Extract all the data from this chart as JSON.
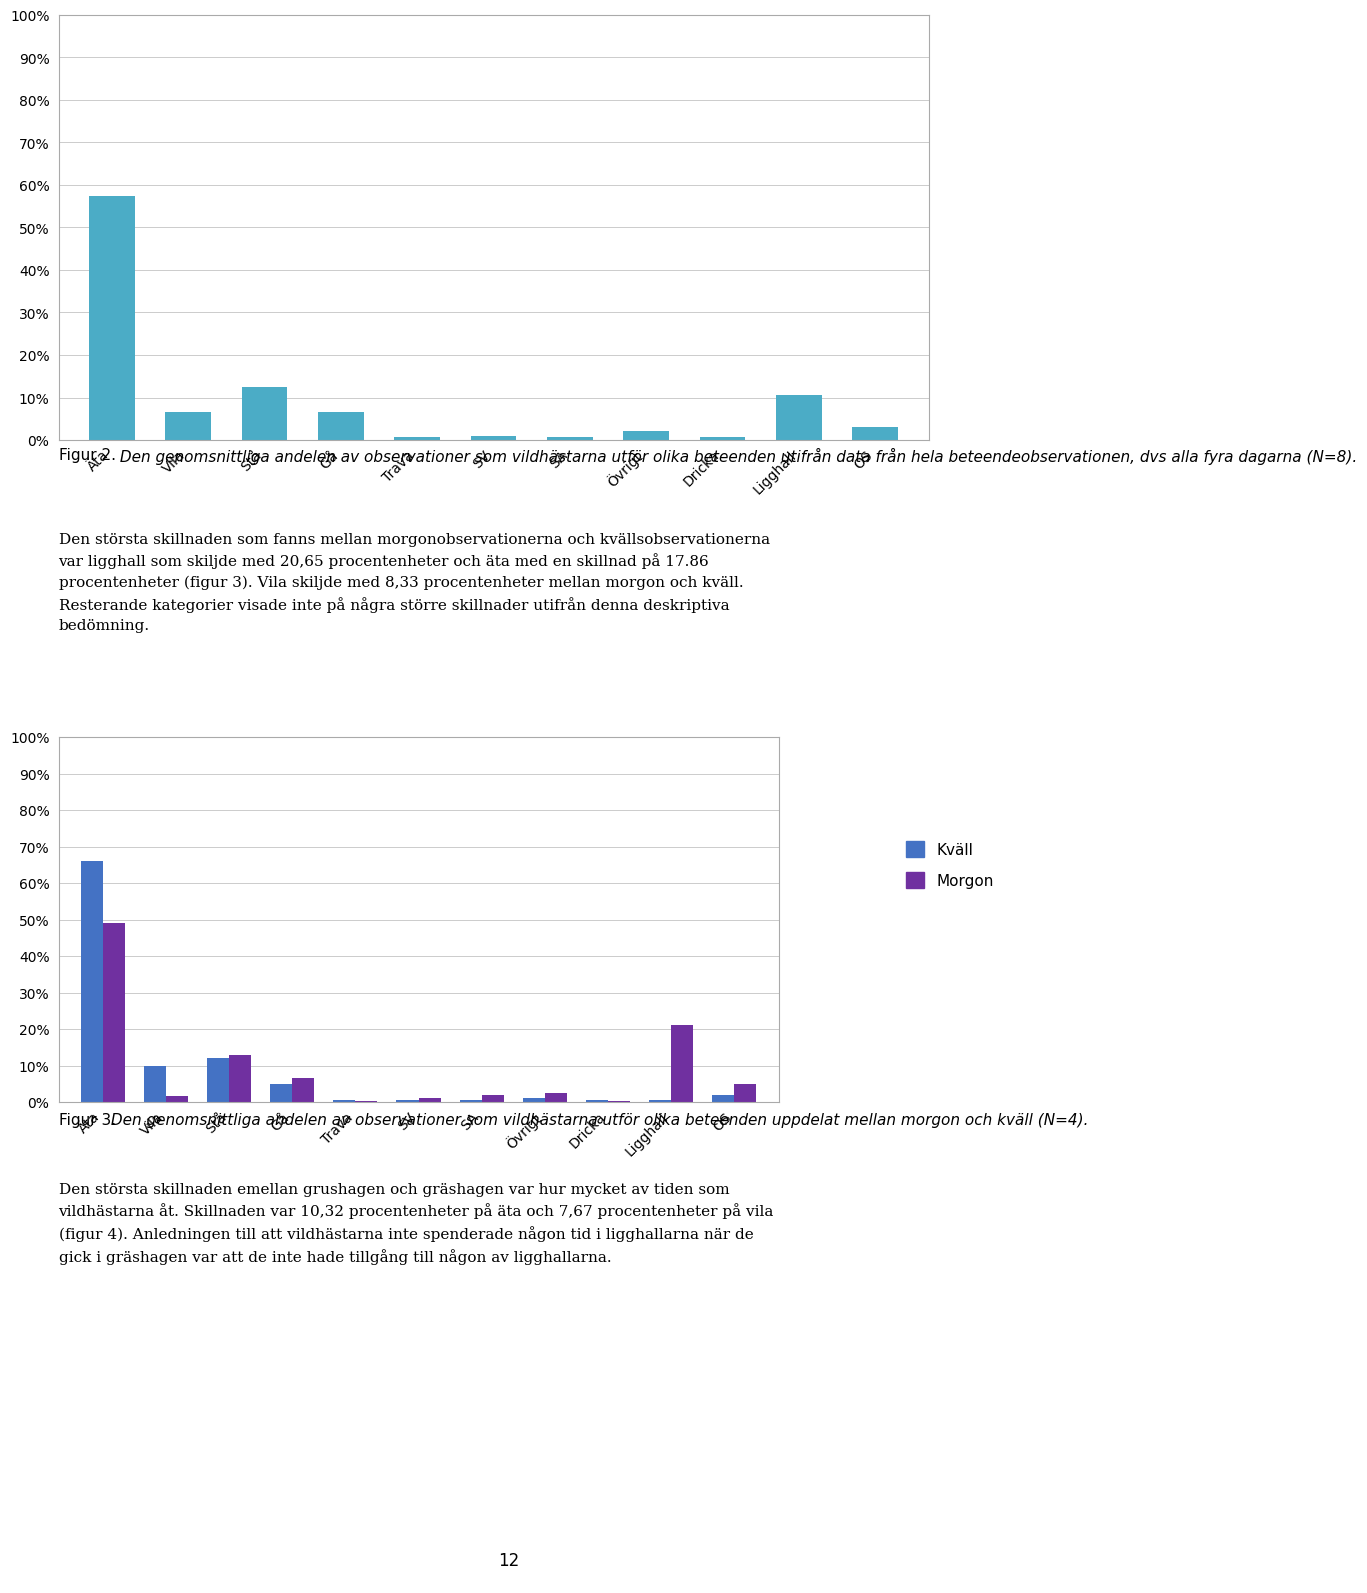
{
  "categories": [
    "Äta",
    "Vila",
    "Stå",
    "Gå",
    "Trava",
    "SV",
    "SA",
    "Övrigt",
    "Dricka",
    "Ligghall",
    "OS"
  ],
  "fig2_values": [
    0.575,
    0.065,
    0.125,
    0.065,
    0.008,
    0.01,
    0.008,
    0.022,
    0.008,
    0.105,
    0.03
  ],
  "fig2_color": "#4BACC6",
  "fig3_kvall": [
    0.66,
    0.1,
    0.12,
    0.05,
    0.005,
    0.005,
    0.005,
    0.01,
    0.005,
    0.005,
    0.02
  ],
  "fig3_morgon": [
    0.49,
    0.017,
    0.13,
    0.065,
    0.002,
    0.01,
    0.02,
    0.025,
    0.002,
    0.21,
    0.048
  ],
  "fig3_kvall_color": "#4472C4",
  "fig3_morgon_color": "#7030A0",
  "legend_kvall": "Kväll",
  "legend_morgon": "Morgon",
  "fig2_caption": "Figur 2.",
  "fig2_caption_italic": " Den genomsnittliga andelen av observationer som vildhästarna utför olika beteenden utifrån data från hela beteendeobservationen, dvs alla fyra dagarna (N=8).",
  "fig3_caption": "Figur 3.",
  "fig3_caption_italic": " Den genomsnittliga andelen av observationer som vildhästarna utför olika beteenden uppdelat mellan morgon och kväll (N=4).",
  "body1_line1": "Den största skillnaden som fanns mellan morgonobservationerna och kvällsobservationerna",
  "body1_line2": "var ligghall som skiljde med 20,65 procentenheter och äta med en skillnad på 17.86",
  "body1_line3": "procentenheter (figur 3). Vila skiljde med 8,33 procentenheter mellan morgon och kväll.",
  "body1_line4": "Resterande kategorier visade inte på några större skillnader utifrån denna deskriptiva",
  "body1_line5": "bedömning.",
  "body2_line1": "Den största skillnaden emellan grushagen och gräshagen var hur mycket av tiden som",
  "body2_line2": "vildhästarna åt. Skillnaden var 10,32 procentenheter på äta och 7,67 procentenheter på vila",
  "body2_line3": "(figur 4). Anledningen till att vildhästarna inte spenderade någon tid i ligghallarna när de",
  "body2_line4": "gick i gräshagen var att de inte hade tillgång till någon av ligghallarna.",
  "page_number": "12",
  "yticks": [
    0.0,
    0.1,
    0.2,
    0.3,
    0.4,
    0.5,
    0.6,
    0.7,
    0.8,
    0.9,
    1.0
  ],
  "ylabels": [
    "0%",
    "10%",
    "20%",
    "30%",
    "40%",
    "50%",
    "60%",
    "70%",
    "80%",
    "90%",
    "100%"
  ]
}
